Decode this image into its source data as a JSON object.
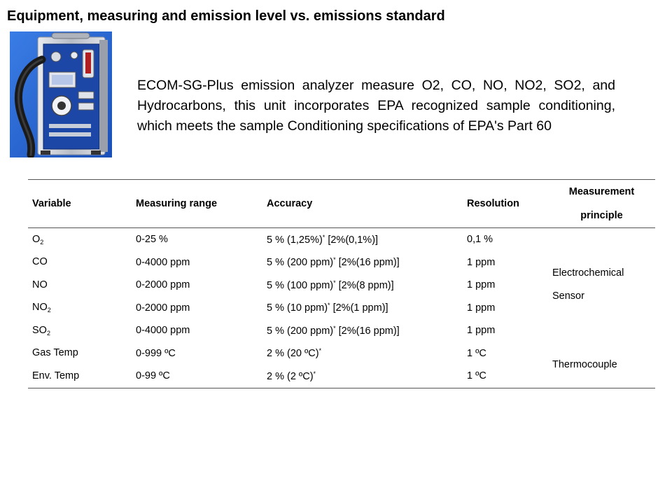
{
  "title": "Equipment, measuring and emission level vs. emissions standard",
  "description": "ECOM-SG-Plus emission analyzer measure O2, CO, NO, NO2, SO2, and Hydrocarbons, this unit incorporates EPA recognized sample conditioning, which meets the sample Conditioning specifications of EPA's Part 60",
  "colors": {
    "analyzer_case_blue": "#1f4fb0",
    "analyzer_frame_silver": "#c9ccd3",
    "photo_background": "#2a6bd8"
  },
  "table": {
    "headers": {
      "variable": "Variable",
      "range": "Measuring range",
      "accuracy": "Accuracy",
      "resolution": "Resolution",
      "principle_line1": "Measurement",
      "principle_line2": "principle"
    },
    "rows": [
      {
        "var_main": "O",
        "var_sub": "2",
        "range": "0-25 %",
        "acc_main": "5 % (1,25%)",
        "acc_sup": "*",
        "acc_rest": " [2%(0,1%)]",
        "resolution": "0,1 %"
      },
      {
        "var_main": "CO",
        "var_sub": "",
        "range": "0-4000 ppm",
        "acc_main": "5 % (200 ppm)",
        "acc_sup": "*",
        "acc_rest": " [2%(16 ppm)]",
        "resolution": "1 ppm"
      },
      {
        "var_main": "NO",
        "var_sub": "",
        "range": "0-2000 ppm",
        "acc_main": "5 % (100 ppm)",
        "acc_sup": "*",
        "acc_rest": " [2%(8 ppm)]",
        "resolution": "1 ppm"
      },
      {
        "var_main": "NO",
        "var_sub": "2",
        "range": "0-2000 ppm",
        "acc_main": "5 % (10 ppm)",
        "acc_sup": "*",
        "acc_rest": " [2%(1 ppm)]",
        "resolution": "1 ppm"
      },
      {
        "var_main": "SO",
        "var_sub": "2",
        "range": "0-4000 ppm",
        "acc_main": "5 % (200 ppm)",
        "acc_sup": "*",
        "acc_rest": " [2%(16 ppm)]",
        "resolution": "1 ppm"
      },
      {
        "var_main": "Gas Temp",
        "var_sub": "",
        "range": "0-999 ºC",
        "acc_main": "2 % (20 ºC)",
        "acc_sup": "*",
        "acc_rest": "",
        "resolution": "1 ºC"
      },
      {
        "var_main": "Env. Temp",
        "var_sub": "",
        "range": "0-99 ºC",
        "acc_main": "2 % (2 ºC)",
        "acc_sup": "*",
        "acc_rest": "",
        "resolution": "1 ºC"
      }
    ],
    "principles": [
      {
        "line1": "Electrochemical",
        "line2": "Sensor"
      },
      {
        "line1": "Thermocouple",
        "line2": ""
      }
    ]
  }
}
